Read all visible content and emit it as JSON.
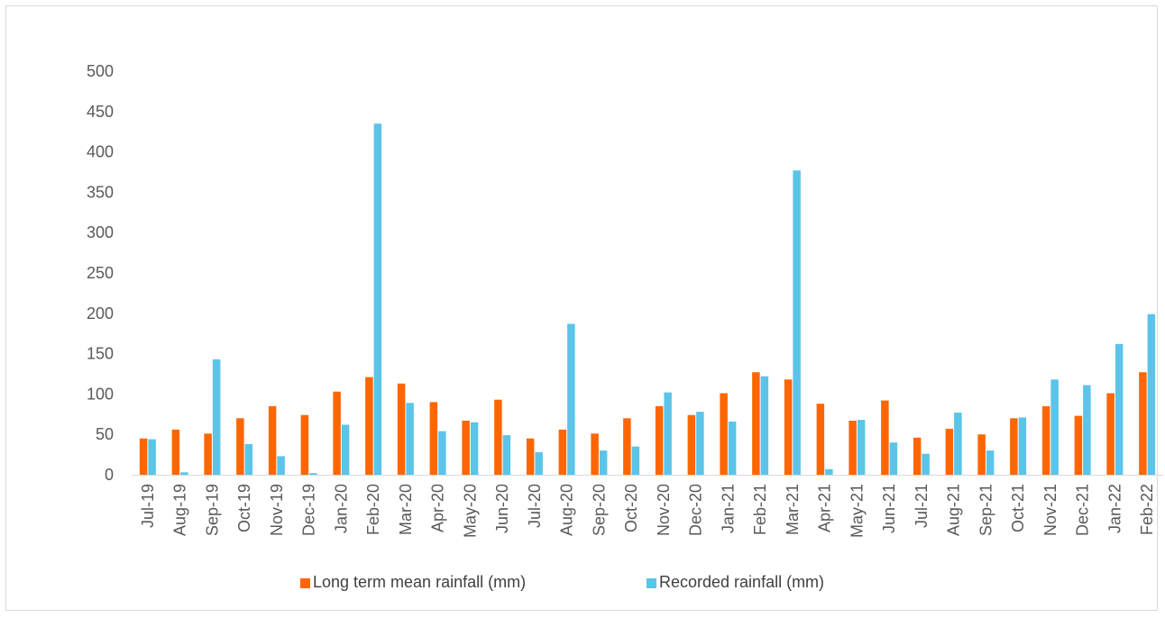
{
  "chart_data": {
    "type": "bar",
    "title": "",
    "xlabel": "",
    "ylabel": "",
    "ylim": [
      0,
      500
    ],
    "yticks": [
      0,
      50,
      100,
      150,
      200,
      250,
      300,
      350,
      400,
      450,
      500
    ],
    "grid": false,
    "legend_position": "bottom",
    "categories": [
      "Jul-19",
      "Aug-19",
      "Sep-19",
      "Oct-19",
      "Nov-19",
      "Dec-19",
      "Jan-20",
      "Feb-20",
      "Mar-20",
      "Apr-20",
      "May-20",
      "Jun-20",
      "Jul-20",
      "Aug-20",
      "Sep-20",
      "Oct-20",
      "Nov-20",
      "Dec-20",
      "Jan-21",
      "Feb-21",
      "Mar-21",
      "Apr-21",
      "May-21",
      "Jun-21",
      "Jul-21",
      "Aug-21",
      "Sep-21",
      "Oct-21",
      "Nov-21",
      "Dec-21",
      "Jan-22",
      "Feb-22"
    ],
    "series": [
      {
        "name": "Long term mean rainfall (mm)",
        "color": "#ff6600",
        "values": [
          45,
          56,
          51,
          70,
          85,
          74,
          103,
          121,
          113,
          90,
          67,
          93,
          45,
          56,
          51,
          70,
          85,
          74,
          101,
          127,
          118,
          88,
          67,
          92,
          46,
          57,
          50,
          70,
          85,
          73,
          101,
          127
        ]
      },
      {
        "name": "Recorded rainfall (mm)",
        "color": "#5bc4e8",
        "values": [
          44,
          3,
          143,
          38,
          23,
          2,
          62,
          435,
          89,
          54,
          65,
          49,
          28,
          187,
          30,
          35,
          102,
          78,
          66,
          122,
          377,
          7,
          68,
          40,
          26,
          77,
          30,
          71,
          118,
          111,
          162,
          199
        ]
      }
    ]
  }
}
